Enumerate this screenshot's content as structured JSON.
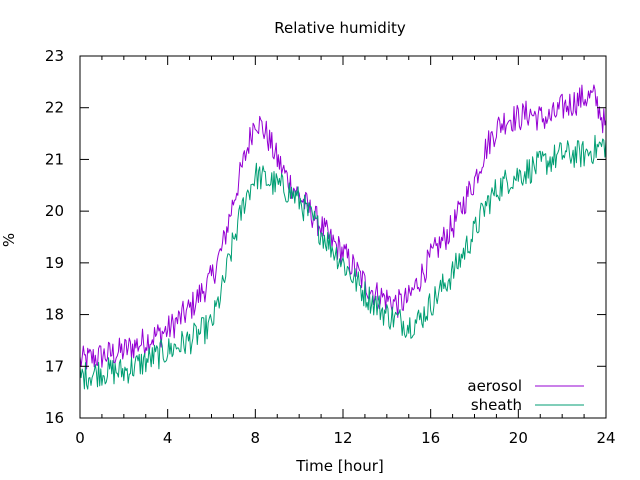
{
  "chart_data": {
    "type": "line",
    "title": "Relative humidity",
    "xlabel": "Time [hour]",
    "ylabel": "%",
    "xlim": [
      0,
      24
    ],
    "ylim": [
      16,
      23
    ],
    "x_ticks": [
      0,
      4,
      8,
      12,
      16,
      20,
      24
    ],
    "y_ticks": [
      16,
      17,
      18,
      19,
      20,
      21,
      22,
      23
    ],
    "grid": false,
    "legend_position": "bottom-right",
    "noise_amplitude": 0.28,
    "series": [
      {
        "name": "aerosol",
        "color": "#9400d3",
        "x": [
          0,
          1,
          2,
          3,
          4,
          5,
          6,
          6.5,
          7,
          7.5,
          8,
          8.5,
          9,
          9.5,
          10,
          10.5,
          11,
          11.5,
          12,
          12.5,
          13,
          13.5,
          14,
          14.5,
          15,
          15.5,
          16,
          17,
          18,
          18.5,
          19,
          19.5,
          20,
          20.5,
          21,
          21.5,
          22,
          22.5,
          23,
          23.5,
          24
        ],
        "values": [
          17.1,
          17.2,
          17.3,
          17.5,
          17.7,
          18.1,
          18.7,
          19.3,
          20.2,
          21.0,
          21.8,
          21.5,
          21.0,
          20.6,
          20.3,
          20.0,
          19.7,
          19.4,
          19.2,
          18.9,
          18.6,
          18.4,
          18.3,
          18.2,
          18.3,
          18.7,
          19.1,
          19.7,
          20.6,
          21.2,
          21.6,
          21.8,
          21.8,
          21.9,
          21.8,
          21.8,
          22.0,
          22.1,
          22.2,
          22.2,
          21.6
        ]
      },
      {
        "name": "sheath",
        "color": "#009e73",
        "x": [
          0,
          1,
          2,
          3,
          4,
          5,
          6,
          6.5,
          7,
          7.5,
          8,
          8.5,
          9,
          9.5,
          10,
          10.5,
          11,
          11.5,
          12,
          12.5,
          13,
          13.5,
          14,
          14.5,
          15,
          15.5,
          16,
          17,
          18,
          18.5,
          19,
          19.5,
          20,
          20.5,
          21,
          21.5,
          22,
          22.5,
          23,
          23.5,
          24
        ],
        "values": [
          16.8,
          16.9,
          16.9,
          17.1,
          17.3,
          17.5,
          17.8,
          18.5,
          19.4,
          20.2,
          20.7,
          20.6,
          20.5,
          20.4,
          20.2,
          19.9,
          19.6,
          19.3,
          19.0,
          18.7,
          18.4,
          18.2,
          18.0,
          17.9,
          17.8,
          17.9,
          18.2,
          18.8,
          19.6,
          20.1,
          20.4,
          20.6,
          20.7,
          20.8,
          20.9,
          21.0,
          21.1,
          21.1,
          21.1,
          21.2,
          21.3
        ]
      }
    ]
  }
}
